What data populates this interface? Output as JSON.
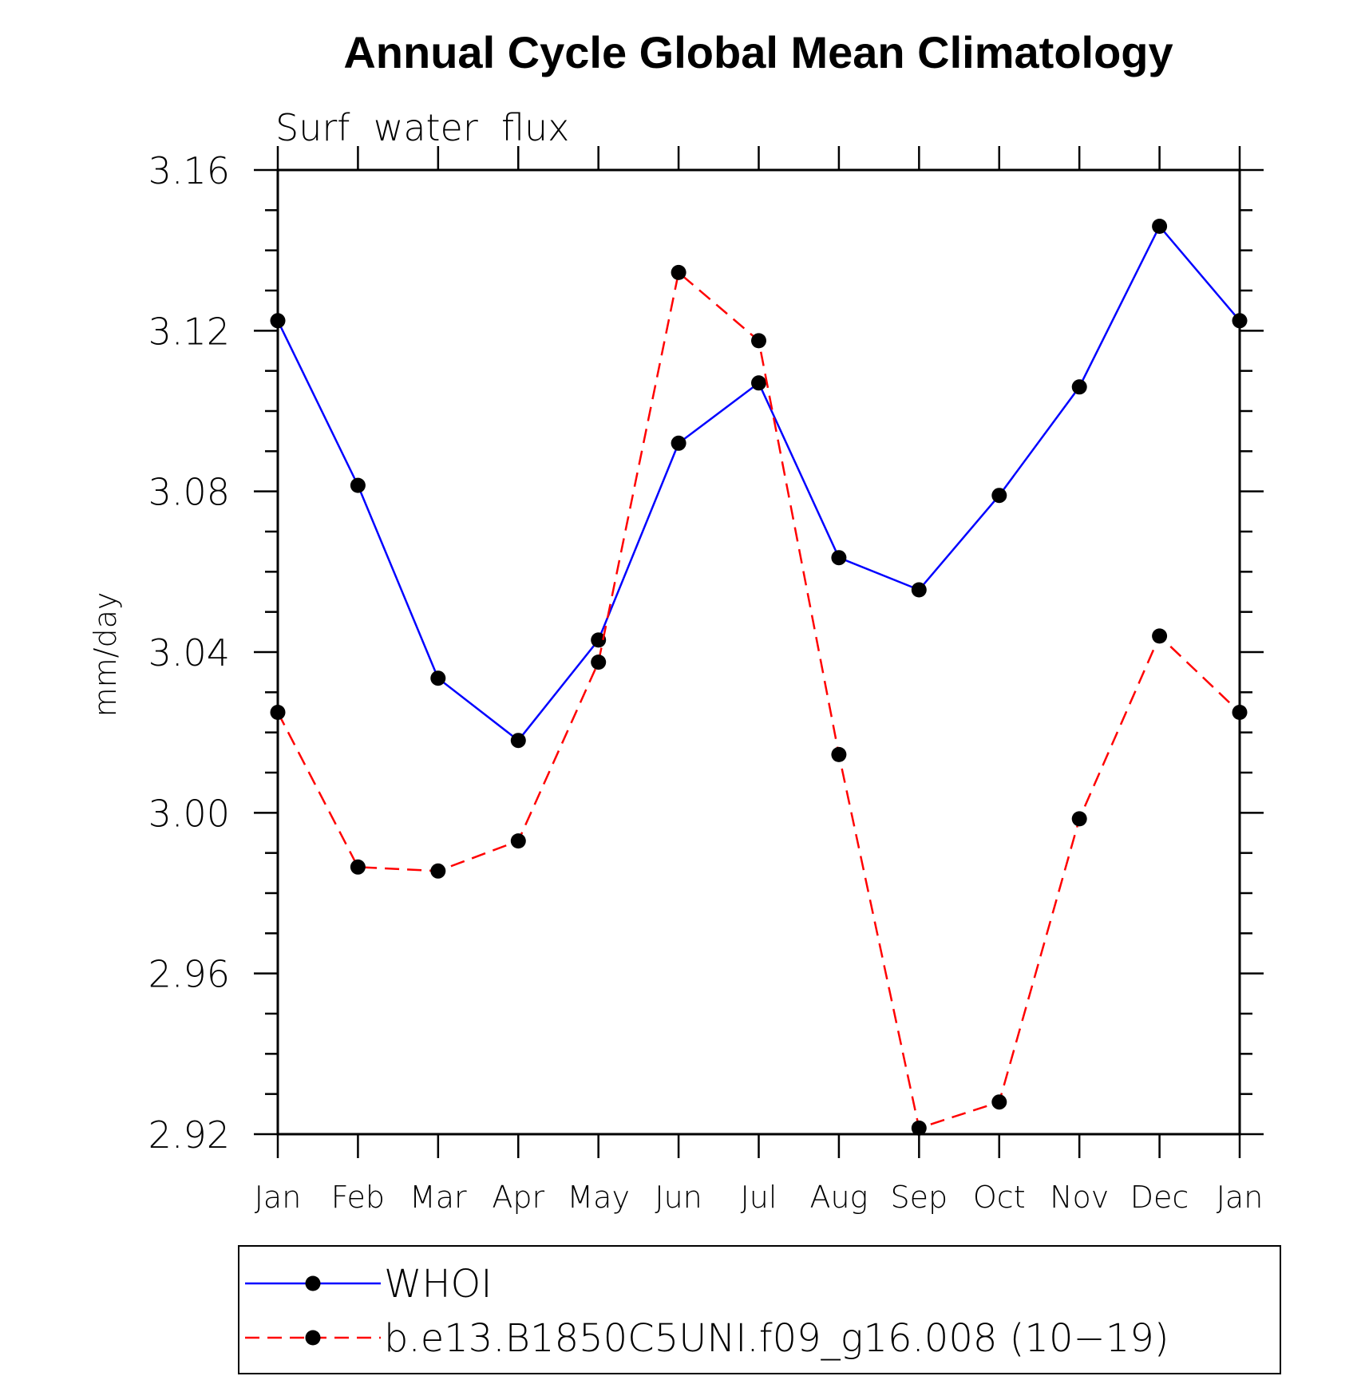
{
  "chart_data": {
    "type": "line",
    "title": "Annual Cycle Global Mean Climatology",
    "subtitle": "Surf  water  flux",
    "xlabel": "",
    "ylabel": "mm/day",
    "categories": [
      "Jan",
      "Feb",
      "Mar",
      "Apr",
      "May",
      "Jun",
      "Jul",
      "Aug",
      "Sep",
      "Oct",
      "Nov",
      "Dec",
      "Jan"
    ],
    "ylim": [
      2.92,
      3.16
    ],
    "yticks": [
      "2.92",
      "2.96",
      "3.00",
      "3.04",
      "3.08",
      "3.12",
      "3.16"
    ],
    "series": [
      {
        "name": "WHOI",
        "color": "#0000ff",
        "dash": "solid",
        "marker": "circle",
        "values": [
          3.1225,
          3.0815,
          3.0335,
          3.018,
          3.043,
          3.092,
          3.107,
          3.0635,
          3.0555,
          3.079,
          3.106,
          3.146,
          3.1225
        ]
      },
      {
        "name": "b.e13.B1850C5UNI.f09_g16.008 (10−19)",
        "color": "#ff0000",
        "dash": "dashed",
        "marker": "circle",
        "values": [
          3.025,
          2.9865,
          2.9855,
          2.993,
          3.0375,
          3.1345,
          3.1175,
          3.0145,
          2.9215,
          2.928,
          2.9985,
          3.044,
          3.025
        ]
      }
    ],
    "legend_position": "bottom"
  }
}
